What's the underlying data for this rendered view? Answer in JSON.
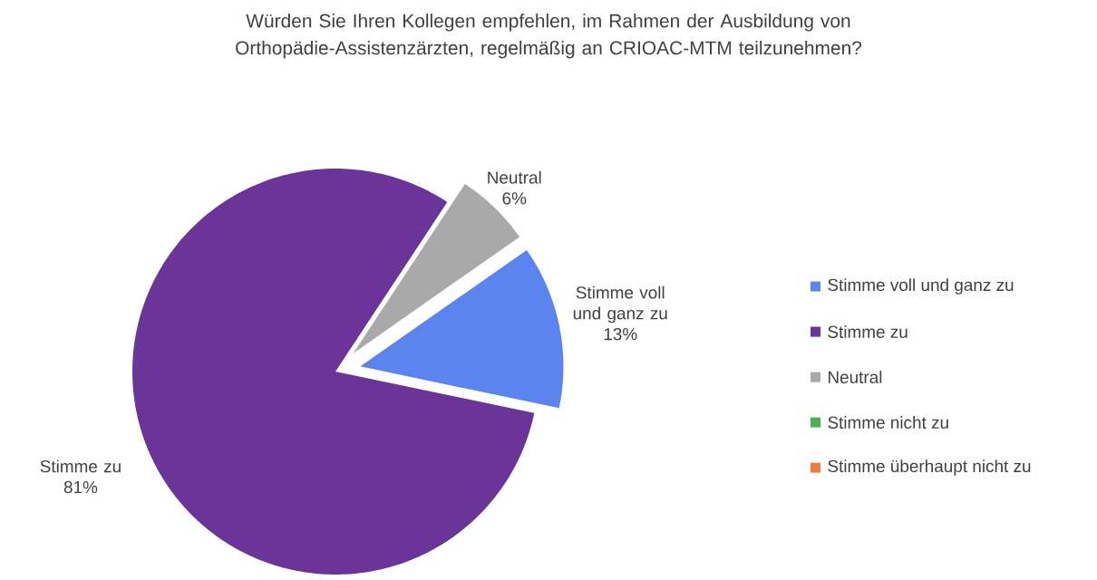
{
  "chart_data": {
    "type": "pie",
    "title": "Würden Sie Ihren Kollegen empfehlen, im Rahmen der Ausbildung von Orthopädie-Assistenzärzten, regelmäßig an CRIOAC-MTM teilzunehmen?",
    "categories": [
      "Stimme voll und ganz zu",
      "Stimme zu",
      "Neutral",
      "Stimme nicht zu",
      "Stimme überhaupt nicht zu"
    ],
    "values": [
      13,
      81,
      6,
      0,
      0
    ],
    "value_labels": [
      "13%",
      "81%",
      "6%",
      null,
      null
    ],
    "colors": [
      "#5b84ee",
      "#6b3499",
      "#a9a9a9",
      "#4caf50",
      "#f07b3f"
    ],
    "legend": "right"
  }
}
